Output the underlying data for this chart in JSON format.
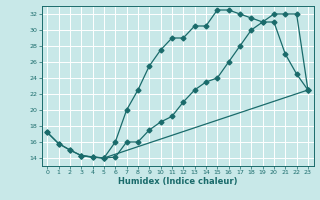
{
  "title": "",
  "xlabel": "Humidex (Indice chaleur)",
  "bg_color": "#c8e8e8",
  "grid_color": "#ffffff",
  "line_color": "#1a6b6b",
  "xlim": [
    -0.5,
    23.5
  ],
  "ylim": [
    13.0,
    33.0
  ],
  "yticks": [
    14,
    16,
    18,
    20,
    22,
    24,
    26,
    28,
    30,
    32
  ],
  "xticks": [
    0,
    1,
    2,
    3,
    4,
    5,
    6,
    7,
    8,
    9,
    10,
    11,
    12,
    13,
    14,
    15,
    16,
    17,
    18,
    19,
    20,
    21,
    22,
    23
  ],
  "line1_x": [
    0,
    1,
    2,
    3,
    4,
    5,
    6,
    7,
    8,
    9,
    10,
    11,
    12,
    13,
    14,
    15,
    16,
    17,
    18,
    19,
    20,
    21,
    22,
    23
  ],
  "line1_y": [
    17.2,
    15.8,
    15.0,
    14.3,
    14.1,
    14.0,
    14.1,
    16.0,
    16.0,
    17.5,
    18.5,
    19.2,
    21.0,
    22.5,
    23.5,
    24.0,
    26.0,
    28.0,
    30.0,
    31.0,
    32.0,
    32.0,
    32.0,
    22.5
  ],
  "line2_x": [
    0,
    1,
    2,
    3,
    4,
    5,
    6,
    7,
    8,
    9,
    10,
    11,
    12,
    13,
    14,
    15,
    16,
    17,
    18,
    19,
    20,
    21,
    22,
    23
  ],
  "line2_y": [
    17.2,
    15.8,
    15.0,
    14.3,
    14.1,
    14.0,
    16.0,
    20.0,
    22.5,
    25.5,
    27.5,
    29.0,
    29.0,
    30.5,
    30.5,
    32.5,
    32.5,
    32.0,
    31.5,
    31.0,
    31.0,
    27.0,
    24.5,
    22.5
  ],
  "line3_x": [
    3,
    5,
    23
  ],
  "line3_y": [
    14.3,
    14.0,
    22.5
  ]
}
